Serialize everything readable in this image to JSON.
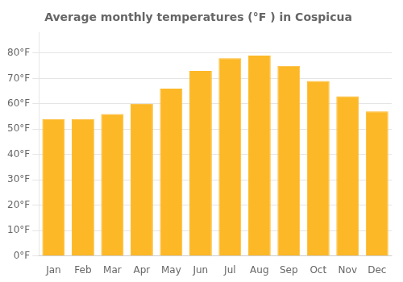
{
  "chart_data": {
    "type": "bar",
    "title": "Average monthly temperatures (°F ) in Cospicua",
    "categories": [
      "Jan",
      "Feb",
      "Mar",
      "Apr",
      "May",
      "Jun",
      "Jul",
      "Aug",
      "Sep",
      "Oct",
      "Nov",
      "Dec"
    ],
    "values": [
      54,
      54,
      56,
      60,
      66,
      73,
      78,
      79,
      75,
      69,
      63,
      57
    ],
    "color": "#FDB827",
    "ylim": [
      0,
      88
    ],
    "yticks": [
      {
        "value": 0,
        "label": "0°F"
      },
      {
        "value": 10,
        "label": "10°F"
      },
      {
        "value": 20,
        "label": "20°F"
      },
      {
        "value": 30,
        "label": "30°F"
      },
      {
        "value": 40,
        "label": "40°F"
      },
      {
        "value": 50,
        "label": "50°F"
      },
      {
        "value": 60,
        "label": "60°F"
      },
      {
        "value": 70,
        "label": "70°F"
      },
      {
        "value": 80,
        "label": "80°F"
      }
    ],
    "grid": true
  }
}
